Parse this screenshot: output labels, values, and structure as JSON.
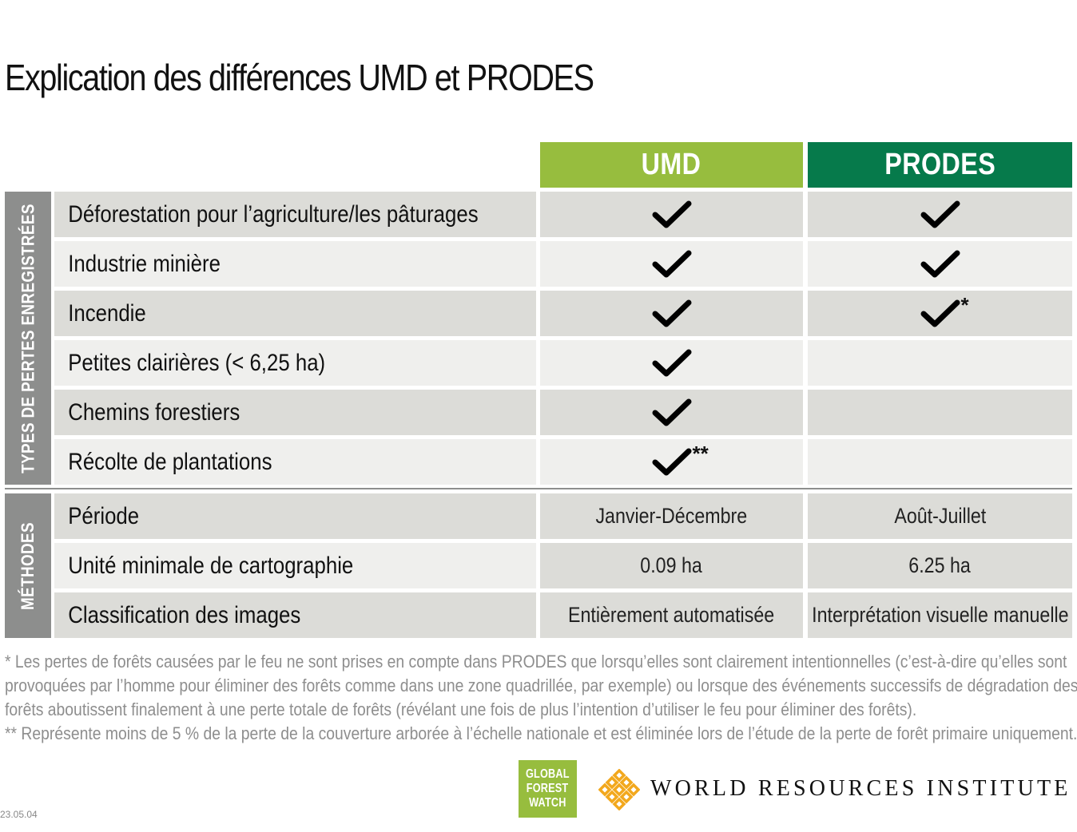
{
  "title": "Explication des différences UMD et PRODES",
  "columns": {
    "umd": "UMD",
    "prodes": "PRODES"
  },
  "colors": {
    "umd": "#97bd3e",
    "prodes": "#067a4b",
    "sidebar": "#8d8e8d",
    "row_dark": "#dcdcd8",
    "row_light": "#efefed",
    "check": "#000000"
  },
  "sections": {
    "types_label": "TYPES DE PERTES ENREGISTRÉES",
    "methods_label": "MÉTHODES"
  },
  "types_rows": [
    {
      "label": "Déforestation pour l’agriculture/les pâturages",
      "umd": {
        "check": true,
        "mark": ""
      },
      "prodes": {
        "check": true,
        "mark": ""
      }
    },
    {
      "label": "Industrie minière",
      "umd": {
        "check": true,
        "mark": ""
      },
      "prodes": {
        "check": true,
        "mark": ""
      }
    },
    {
      "label": "Incendie",
      "umd": {
        "check": true,
        "mark": ""
      },
      "prodes": {
        "check": true,
        "mark": "*"
      }
    },
    {
      "label": "Petites clairières (< 6,25 ha)",
      "umd": {
        "check": true,
        "mark": ""
      },
      "prodes": {
        "check": false,
        "mark": ""
      }
    },
    {
      "label": "Chemins forestiers",
      "umd": {
        "check": true,
        "mark": ""
      },
      "prodes": {
        "check": false,
        "mark": ""
      }
    },
    {
      "label": "Récolte de plantations",
      "umd": {
        "check": true,
        "mark": "**"
      },
      "prodes": {
        "check": false,
        "mark": ""
      }
    }
  ],
  "methods_rows": [
    {
      "label": "Période",
      "umd": "Janvier-Décembre",
      "prodes": "Août-Juillet"
    },
    {
      "label": "Unité minimale de cartographie",
      "umd": "0.09 ha",
      "prodes": "6.25 ha"
    },
    {
      "label": "Classification des images",
      "umd": "Entièrement automatisée",
      "prodes": "Interprétation visuelle manuelle"
    }
  ],
  "notes": {
    "line1": "* Les pertes de forêts causées par le feu ne sont prises en compte dans PRODES que lorsqu’elles sont clairement intentionnelles (c’est-à-dire qu’elles sont",
    "line2": "provoquées par l’homme pour éliminer des forêts comme dans une zone quadrillée, par exemple) ou lorsque des événements successifs de dégradation des",
    "line3": "forêts aboutissent finalement à une perte totale de forêts (révélant une fois de plus l’intention d’utiliser le feu pour éliminer des forêts).",
    "line4": "** Représente moins de 5 % de la perte de la couverture arborée à l’échelle nationale et est éliminée lors de l’étude de la perte de forêt primaire uniquement."
  },
  "logos": {
    "gfw_line1": "GLOBAL",
    "gfw_line2": "FOREST",
    "gfw_line3": "WATCH",
    "wri_text": "WORLD RESOURCES INSTITUTE",
    "wri_color": "#f2a81d"
  },
  "footer": {
    "date": "23.05.04"
  }
}
